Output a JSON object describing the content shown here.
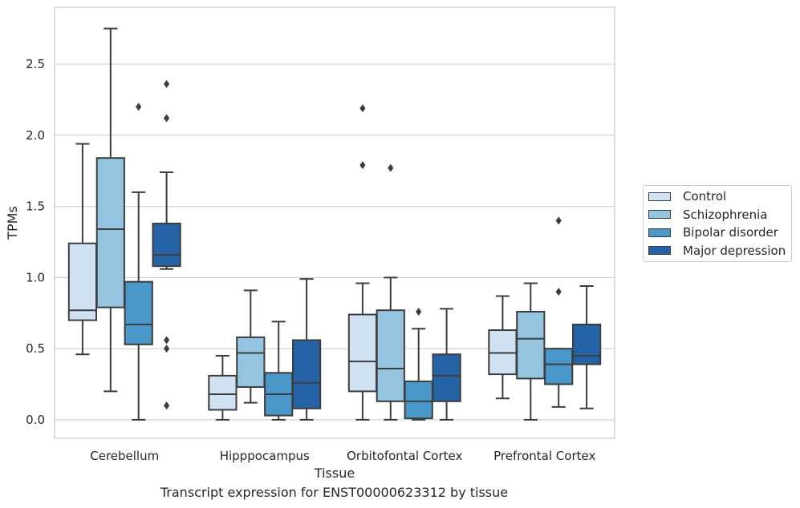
{
  "caption": "Transcript expression for ENST00000623312 by tissue",
  "chart_data": {
    "type": "box",
    "xlabel": "Tissue",
    "ylabel": "TPMs",
    "ylim": [
      -0.13,
      2.9
    ],
    "yticks": [
      "0.0",
      "0.5",
      "1.0",
      "1.5",
      "2.0",
      "2.5"
    ],
    "grid": "horizontal",
    "legend_position": "right",
    "categories": [
      "Cerebellum",
      "Hipppocampus",
      "Orbitofontal Cortex",
      "Prefrontal Cortex"
    ],
    "series": [
      {
        "name": "Control",
        "color": "#d0e1f2",
        "boxes": [
          {
            "whislo": 0.46,
            "q1": 0.7,
            "med": 0.77,
            "q3": 1.24,
            "whishi": 1.94,
            "fliers": []
          },
          {
            "whislo": 0.0,
            "q1": 0.07,
            "med": 0.18,
            "q3": 0.31,
            "whishi": 0.45,
            "fliers": []
          },
          {
            "whislo": 0.0,
            "q1": 0.2,
            "med": 0.41,
            "q3": 0.74,
            "whishi": 0.96,
            "fliers": [
              2.19,
              1.79
            ]
          },
          {
            "whislo": 0.15,
            "q1": 0.32,
            "med": 0.47,
            "q3": 0.63,
            "whishi": 0.87,
            "fliers": []
          }
        ]
      },
      {
        "name": "Schizophrenia",
        "color": "#94c4df",
        "boxes": [
          {
            "whislo": 0.2,
            "q1": 0.79,
            "med": 1.34,
            "q3": 1.84,
            "whishi": 2.75,
            "fliers": []
          },
          {
            "whislo": 0.12,
            "q1": 0.23,
            "med": 0.47,
            "q3": 0.58,
            "whishi": 0.91,
            "fliers": []
          },
          {
            "whislo": 0.0,
            "q1": 0.13,
            "med": 0.36,
            "q3": 0.77,
            "whishi": 1.0,
            "fliers": [
              1.77
            ]
          },
          {
            "whislo": 0.0,
            "q1": 0.29,
            "med": 0.57,
            "q3": 0.76,
            "whishi": 0.96,
            "fliers": []
          }
        ]
      },
      {
        "name": "Bipolar disorder",
        "color": "#4a98c9",
        "boxes": [
          {
            "whislo": 0.0,
            "q1": 0.53,
            "med": 0.67,
            "q3": 0.97,
            "whishi": 1.6,
            "fliers": [
              2.2
            ]
          },
          {
            "whislo": 0.0,
            "q1": 0.03,
            "med": 0.18,
            "q3": 0.33,
            "whishi": 0.69,
            "fliers": []
          },
          {
            "whislo": 0.0,
            "q1": 0.01,
            "med": 0.13,
            "q3": 0.27,
            "whishi": 0.64,
            "fliers": [
              0.76
            ]
          },
          {
            "whislo": 0.09,
            "q1": 0.25,
            "med": 0.39,
            "q3": 0.5,
            "whishi": 0.5,
            "fliers": [
              1.4,
              0.9
            ]
          }
        ]
      },
      {
        "name": "Major depression",
        "color": "#2464a6",
        "boxes": [
          {
            "whislo": 1.06,
            "q1": 1.08,
            "med": 1.16,
            "q3": 1.38,
            "whishi": 1.74,
            "fliers": [
              2.36,
              2.12,
              0.56,
              0.5,
              0.1
            ]
          },
          {
            "whislo": 0.0,
            "q1": 0.08,
            "med": 0.26,
            "q3": 0.56,
            "whishi": 0.99,
            "fliers": []
          },
          {
            "whislo": 0.0,
            "q1": 0.13,
            "med": 0.31,
            "q3": 0.46,
            "whishi": 0.78,
            "fliers": []
          },
          {
            "whislo": 0.08,
            "q1": 0.39,
            "med": 0.45,
            "q3": 0.67,
            "whishi": 0.94,
            "fliers": []
          }
        ]
      }
    ]
  }
}
